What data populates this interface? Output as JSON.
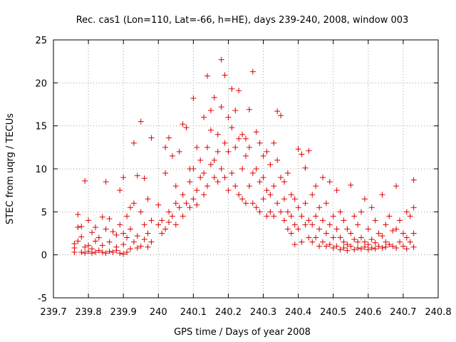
{
  "chart_data": {
    "type": "scatter",
    "title": "Rec. cas1 (Lon=110, Lat=-66, h=HE), days 239-240, 2008, window 003",
    "xlabel": "GPS time / Days of year 2008",
    "ylabel": "STEC from uqrg / TECUs",
    "xlim": [
      239.7,
      240.8
    ],
    "ylim": [
      -5,
      25
    ],
    "x_ticks": [
      "239.7",
      "239.8",
      "239.9",
      "240",
      "240.1",
      "240.2",
      "240.3",
      "240.4",
      "240.5",
      "240.6",
      "240.7",
      "240.8"
    ],
    "y_ticks": [
      "-5",
      "0",
      "5",
      "10",
      "15",
      "20",
      "25"
    ],
    "grid": true,
    "marker": "plus",
    "color": "#dd0000",
    "series": [
      {
        "points": [
          [
            239.76,
            0.3
          ],
          [
            239.76,
            0.8
          ],
          [
            239.76,
            1.3
          ],
          [
            239.77,
            4.7
          ],
          [
            239.77,
            3.2
          ],
          [
            239.77,
            1.6
          ],
          [
            239.78,
            0.3
          ],
          [
            239.78,
            2.1
          ],
          [
            239.78,
            3.3
          ],
          [
            239.79,
            8.6
          ],
          [
            239.79,
            0.9
          ],
          [
            239.79,
            0.2
          ],
          [
            239.8,
            0.4
          ],
          [
            239.8,
            1.1
          ],
          [
            239.8,
            4.0
          ],
          [
            239.81,
            0.2
          ],
          [
            239.81,
            2.6
          ],
          [
            239.81,
            0.7
          ],
          [
            239.82,
            3.2
          ],
          [
            239.82,
            0.3
          ],
          [
            239.82,
            1.6
          ],
          [
            239.83,
            0.5
          ],
          [
            239.83,
            2.0
          ],
          [
            239.84,
            4.4
          ],
          [
            239.84,
            0.3
          ],
          [
            239.84,
            1.1
          ],
          [
            239.85,
            0.2
          ],
          [
            239.85,
            3.0
          ],
          [
            239.85,
            8.5
          ],
          [
            239.86,
            4.2
          ],
          [
            239.86,
            0.4
          ],
          [
            239.86,
            1.5
          ],
          [
            239.87,
            0.3
          ],
          [
            239.87,
            2.7
          ],
          [
            239.88,
            0.5
          ],
          [
            239.88,
            0.9
          ],
          [
            239.88,
            2.3
          ],
          [
            239.89,
            7.5
          ],
          [
            239.89,
            3.5
          ],
          [
            239.89,
            0.2
          ],
          [
            239.9,
            0.1
          ],
          [
            239.9,
            9.0
          ],
          [
            239.9,
            1.2
          ],
          [
            239.9,
            2.5
          ],
          [
            239.91,
            0.3
          ],
          [
            239.91,
            4.5
          ],
          [
            239.91,
            2.0
          ],
          [
            239.92,
            5.5
          ],
          [
            239.92,
            0.7
          ],
          [
            239.92,
            3.0
          ],
          [
            239.93,
            13.0
          ],
          [
            239.93,
            6.0
          ],
          [
            239.93,
            1.5
          ],
          [
            239.94,
            9.2
          ],
          [
            239.94,
            0.8
          ],
          [
            239.94,
            2.2
          ],
          [
            239.95,
            15.5
          ],
          [
            239.95,
            5.0
          ],
          [
            239.95,
            1.0
          ],
          [
            239.96,
            3.5
          ],
          [
            239.96,
            8.9
          ],
          [
            239.96,
            1.8
          ],
          [
            239.97,
            6.5
          ],
          [
            239.97,
            2.5
          ],
          [
            239.97,
            0.9
          ],
          [
            239.98,
            13.6
          ],
          [
            239.98,
            4.0
          ],
          [
            239.98,
            1.5
          ],
          [
            240.0,
            5.8
          ],
          [
            240.0,
            3.5
          ],
          [
            240.01,
            4.0
          ],
          [
            240.01,
            2.5
          ],
          [
            240.02,
            9.5
          ],
          [
            240.02,
            12.5
          ],
          [
            240.02,
            3.0
          ],
          [
            240.03,
            13.6
          ],
          [
            240.03,
            5.0
          ],
          [
            240.03,
            3.8
          ],
          [
            240.04,
            11.5
          ],
          [
            240.04,
            4.5
          ],
          [
            240.05,
            8.0
          ],
          [
            240.05,
            6.0
          ],
          [
            240.05,
            3.5
          ],
          [
            240.06,
            12.0
          ],
          [
            240.06,
            5.5
          ],
          [
            240.07,
            15.2
          ],
          [
            240.07,
            7.0
          ],
          [
            240.07,
            4.5
          ],
          [
            240.08,
            14.8
          ],
          [
            240.08,
            6.0
          ],
          [
            240.09,
            10.0
          ],
          [
            240.09,
            5.5
          ],
          [
            240.09,
            8.5
          ],
          [
            240.1,
            18.2
          ],
          [
            240.1,
            6.5
          ],
          [
            240.1,
            10.0
          ],
          [
            240.11,
            12.5
          ],
          [
            240.11,
            7.5
          ],
          [
            240.11,
            5.8
          ],
          [
            240.12,
            9.0
          ],
          [
            240.12,
            11.0
          ],
          [
            240.13,
            16.0
          ],
          [
            240.13,
            7.0
          ],
          [
            240.13,
            9.5
          ],
          [
            240.14,
            20.8
          ],
          [
            240.14,
            12.5
          ],
          [
            240.14,
            8.0
          ],
          [
            240.15,
            16.8
          ],
          [
            240.15,
            10.5
          ],
          [
            240.15,
            14.5
          ],
          [
            240.16,
            18.3
          ],
          [
            240.16,
            11.0
          ],
          [
            240.16,
            9.0
          ],
          [
            240.17,
            14.0
          ],
          [
            240.17,
            8.5
          ],
          [
            240.17,
            12.0
          ],
          [
            240.18,
            22.7
          ],
          [
            240.18,
            17.2
          ],
          [
            240.18,
            10.0
          ],
          [
            240.19,
            20.9
          ],
          [
            240.19,
            13.0
          ],
          [
            240.19,
            9.0
          ],
          [
            240.2,
            16.0
          ],
          [
            240.2,
            12.0
          ],
          [
            240.2,
            7.5
          ],
          [
            240.21,
            19.3
          ],
          [
            240.21,
            14.8
          ],
          [
            240.21,
            9.5
          ],
          [
            240.22,
            16.8
          ],
          [
            240.22,
            12.5
          ],
          [
            240.22,
            8.0
          ],
          [
            240.23,
            19.1
          ],
          [
            240.23,
            13.5
          ],
          [
            240.23,
            7.0
          ],
          [
            240.24,
            14.0
          ],
          [
            240.24,
            10.0
          ],
          [
            240.24,
            6.5
          ],
          [
            240.25,
            13.5
          ],
          [
            240.25,
            11.5
          ],
          [
            240.25,
            6.0
          ],
          [
            240.26,
            16.9
          ],
          [
            240.26,
            12.5
          ],
          [
            240.26,
            8.0
          ],
          [
            240.27,
            21.3
          ],
          [
            240.27,
            9.5
          ],
          [
            240.27,
            6.0
          ],
          [
            240.28,
            14.3
          ],
          [
            240.28,
            10.0
          ],
          [
            240.28,
            5.5
          ],
          [
            240.29,
            13.0
          ],
          [
            240.29,
            8.5
          ],
          [
            240.29,
            5.0
          ],
          [
            240.3,
            11.5
          ],
          [
            240.3,
            9.0
          ],
          [
            240.3,
            6.5
          ],
          [
            240.31,
            12.0
          ],
          [
            240.31,
            7.5
          ],
          [
            240.31,
            4.5
          ],
          [
            240.32,
            10.5
          ],
          [
            240.32,
            7.0
          ],
          [
            240.32,
            5.0
          ],
          [
            240.33,
            13.0
          ],
          [
            240.33,
            8.0
          ],
          [
            240.33,
            4.5
          ],
          [
            240.34,
            16.7
          ],
          [
            240.34,
            11.0
          ],
          [
            240.34,
            6.0
          ],
          [
            240.35,
            16.2
          ],
          [
            240.35,
            9.0
          ],
          [
            240.35,
            5.0
          ],
          [
            240.36,
            8.5
          ],
          [
            240.36,
            6.5
          ],
          [
            240.36,
            4.0
          ],
          [
            240.37,
            9.5
          ],
          [
            240.37,
            5.0
          ],
          [
            240.37,
            3.0
          ],
          [
            240.38,
            7.0
          ],
          [
            240.38,
            4.5
          ],
          [
            240.38,
            2.5
          ],
          [
            240.39,
            6.5
          ],
          [
            240.39,
            3.5
          ],
          [
            240.39,
            1.2
          ],
          [
            240.4,
            12.3
          ],
          [
            240.4,
            5.5
          ],
          [
            240.4,
            3.0
          ],
          [
            240.41,
            11.7
          ],
          [
            240.41,
            4.5
          ],
          [
            240.41,
            1.5
          ],
          [
            240.42,
            10.1
          ],
          [
            240.42,
            6.0
          ],
          [
            240.42,
            3.5
          ],
          [
            240.43,
            12.1
          ],
          [
            240.43,
            4.0
          ],
          [
            240.43,
            2.0
          ],
          [
            240.44,
            7.0
          ],
          [
            240.44,
            3.5
          ],
          [
            240.44,
            1.5
          ],
          [
            240.45,
            8.0
          ],
          [
            240.45,
            4.5
          ],
          [
            240.45,
            2.0
          ],
          [
            240.46,
            5.5
          ],
          [
            240.46,
            3.0
          ],
          [
            240.46,
            1.0
          ],
          [
            240.47,
            9.0
          ],
          [
            240.47,
            4.0
          ],
          [
            240.47,
            1.5
          ],
          [
            240.48,
            6.0
          ],
          [
            240.48,
            2.5
          ],
          [
            240.48,
            1.0
          ],
          [
            240.49,
            8.5
          ],
          [
            240.49,
            3.5
          ],
          [
            240.49,
            1.2
          ],
          [
            240.5,
            4.5
          ],
          [
            240.5,
            2.0
          ],
          [
            240.5,
            0.8
          ],
          [
            240.51,
            7.5
          ],
          [
            240.51,
            3.0
          ],
          [
            240.51,
            1.0
          ],
          [
            240.52,
            5.0
          ],
          [
            240.52,
            2.0
          ],
          [
            240.52,
            0.6
          ],
          [
            240.53,
            4.0
          ],
          [
            240.53,
            1.5
          ],
          [
            240.53,
            0.8
          ],
          [
            240.54,
            3.0
          ],
          [
            240.54,
            1.2
          ],
          [
            240.54,
            0.5
          ],
          [
            240.55,
            8.1
          ],
          [
            240.55,
            2.5
          ],
          [
            240.55,
            1.0
          ],
          [
            240.56,
            4.5
          ],
          [
            240.56,
            1.8
          ],
          [
            240.56,
            0.6
          ],
          [
            240.57,
            3.5
          ],
          [
            240.57,
            1.5
          ],
          [
            240.57,
            0.8
          ],
          [
            240.58,
            5.0
          ],
          [
            240.58,
            2.0
          ],
          [
            240.58,
            0.7
          ],
          [
            240.59,
            6.5
          ],
          [
            240.59,
            1.5
          ],
          [
            240.59,
            0.9
          ],
          [
            240.6,
            3.0
          ],
          [
            240.6,
            1.2
          ],
          [
            240.6,
            0.6
          ],
          [
            240.61,
            5.5
          ],
          [
            240.61,
            1.8
          ],
          [
            240.61,
            0.8
          ],
          [
            240.62,
            4.0
          ],
          [
            240.62,
            1.4
          ],
          [
            240.62,
            0.7
          ],
          [
            240.63,
            2.5
          ],
          [
            240.63,
            1.0
          ],
          [
            240.64,
            7.0
          ],
          [
            240.64,
            2.2
          ],
          [
            240.64,
            0.8
          ],
          [
            240.65,
            3.5
          ],
          [
            240.65,
            1.5
          ],
          [
            240.65,
            0.9
          ],
          [
            240.66,
            4.5
          ],
          [
            240.66,
            1.2
          ],
          [
            240.67,
            2.8
          ],
          [
            240.67,
            1.0
          ],
          [
            240.68,
            8.0
          ],
          [
            240.68,
            3.0
          ],
          [
            240.68,
            0.8
          ],
          [
            240.69,
            4.0
          ],
          [
            240.69,
            1.5
          ],
          [
            240.7,
            2.5
          ],
          [
            240.7,
            1.0
          ],
          [
            240.71,
            5.0
          ],
          [
            240.71,
            2.0
          ],
          [
            240.71,
            0.7
          ],
          [
            240.72,
            4.5
          ],
          [
            240.72,
            1.5
          ],
          [
            240.73,
            8.7
          ],
          [
            240.73,
            5.5
          ],
          [
            240.73,
            2.5
          ],
          [
            240.73,
            0.9
          ]
        ]
      }
    ]
  }
}
